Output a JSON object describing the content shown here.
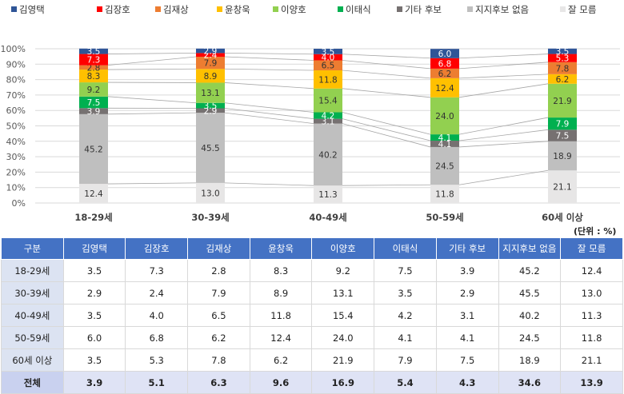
{
  "chart_data": {
    "type": "bar",
    "stacked": true,
    "categories": [
      "18-29세",
      "30-39세",
      "40-49세",
      "50-59세",
      "60세 이상"
    ],
    "series": [
      {
        "name": "김영택",
        "color": "#2f5597",
        "values": [
          3.5,
          2.9,
          3.5,
          6.0,
          3.5
        ]
      },
      {
        "name": "김장호",
        "color": "#ff0000",
        "values": [
          7.3,
          2.4,
          4.0,
          6.8,
          5.3
        ]
      },
      {
        "name": "김재상",
        "color": "#ed7d31",
        "values": [
          2.8,
          7.9,
          6.5,
          6.2,
          7.8
        ]
      },
      {
        "name": "윤창욱",
        "color": "#ffc000",
        "values": [
          8.3,
          8.9,
          11.8,
          12.4,
          6.2
        ]
      },
      {
        "name": "이양호",
        "color": "#92d050",
        "values": [
          9.2,
          13.1,
          15.4,
          24.0,
          21.9
        ]
      },
      {
        "name": "이태식",
        "color": "#00b050",
        "values": [
          7.5,
          3.5,
          4.2,
          4.1,
          7.9
        ]
      },
      {
        "name": "기타 후보",
        "color": "#767171",
        "values": [
          3.9,
          2.9,
          3.1,
          4.1,
          7.5
        ]
      },
      {
        "name": "지지후보 없음",
        "color": "#bfbfbf",
        "values": [
          45.2,
          45.5,
          40.2,
          24.5,
          18.9
        ]
      },
      {
        "name": "잘 모름",
        "color": "#e7e6e6",
        "values": [
          12.4,
          13.0,
          11.3,
          11.8,
          21.1
        ]
      }
    ],
    "ylim": [
      0,
      100
    ],
    "yticks": [
      "0%",
      "10%",
      "20%",
      "30%",
      "40%",
      "50%",
      "60%",
      "70%",
      "80%",
      "90%",
      "100%"
    ],
    "legend": "top"
  },
  "unit_label": "(단위 : %)",
  "table": {
    "headers": [
      "구분",
      "김영택",
      "김장호",
      "김재상",
      "윤창욱",
      "이양호",
      "이태식",
      "기타 후보",
      "지지후보 없음",
      "잘 모름"
    ],
    "rows": [
      [
        "18-29세",
        "3.5",
        "7.3",
        "2.8",
        "8.3",
        "9.2",
        "7.5",
        "3.9",
        "45.2",
        "12.4"
      ],
      [
        "30-39세",
        "2.9",
        "2.4",
        "7.9",
        "8.9",
        "13.1",
        "3.5",
        "2.9",
        "45.5",
        "13.0"
      ],
      [
        "40-49세",
        "3.5",
        "4.0",
        "6.5",
        "11.8",
        "15.4",
        "4.2",
        "3.1",
        "40.2",
        "11.3"
      ],
      [
        "50-59세",
        "6.0",
        "6.8",
        "6.2",
        "12.4",
        "24.0",
        "4.1",
        "4.1",
        "24.5",
        "11.8"
      ],
      [
        "60세 이상",
        "3.5",
        "5.3",
        "7.8",
        "6.2",
        "21.9",
        "7.9",
        "7.5",
        "18.9",
        "21.1"
      ]
    ],
    "total": [
      "전체",
      "3.9",
      "5.1",
      "6.3",
      "9.6",
      "16.9",
      "5.4",
      "4.3",
      "34.6",
      "13.9"
    ]
  }
}
